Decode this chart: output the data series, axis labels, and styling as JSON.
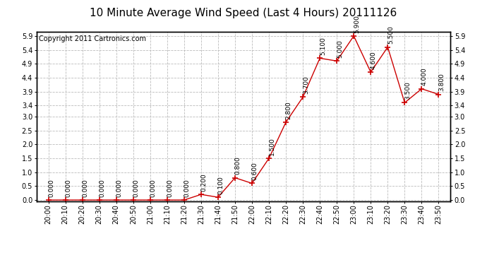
{
  "title": "10 Minute Average Wind Speed (Last 4 Hours) 20111126",
  "copyright": "Copyright 2011 Cartronics.com",
  "x_labels": [
    "20:00",
    "20:10",
    "20:20",
    "20:30",
    "20:40",
    "20:50",
    "21:00",
    "21:10",
    "21:20",
    "21:30",
    "21:40",
    "21:50",
    "22:00",
    "22:10",
    "22:20",
    "22:30",
    "22:40",
    "22:50",
    "23:00",
    "23:10",
    "23:20",
    "23:30",
    "23:40",
    "23:50"
  ],
  "y_values": [
    0.0,
    0.0,
    0.0,
    0.0,
    0.0,
    0.0,
    0.0,
    0.0,
    0.0,
    0.2,
    0.1,
    0.8,
    0.6,
    1.5,
    2.8,
    3.7,
    5.1,
    5.0,
    5.9,
    4.6,
    5.5,
    3.5,
    4.0,
    3.8
  ],
  "ylim_min": -0.05,
  "ylim_max": 6.05,
  "yticks": [
    0.0,
    0.5,
    1.0,
    1.5,
    2.0,
    2.5,
    3.0,
    3.4,
    3.9,
    4.4,
    4.9,
    5.4,
    5.9
  ],
  "line_color": "#cc0000",
  "marker": "+",
  "marker_size": 6,
  "marker_color": "#cc0000",
  "bg_color": "#ffffff",
  "plot_bg_color": "#ffffff",
  "grid_color": "#bbbbbb",
  "title_fontsize": 11,
  "copyright_fontsize": 7,
  "tick_fontsize": 7,
  "annotation_fontsize": 6.5
}
